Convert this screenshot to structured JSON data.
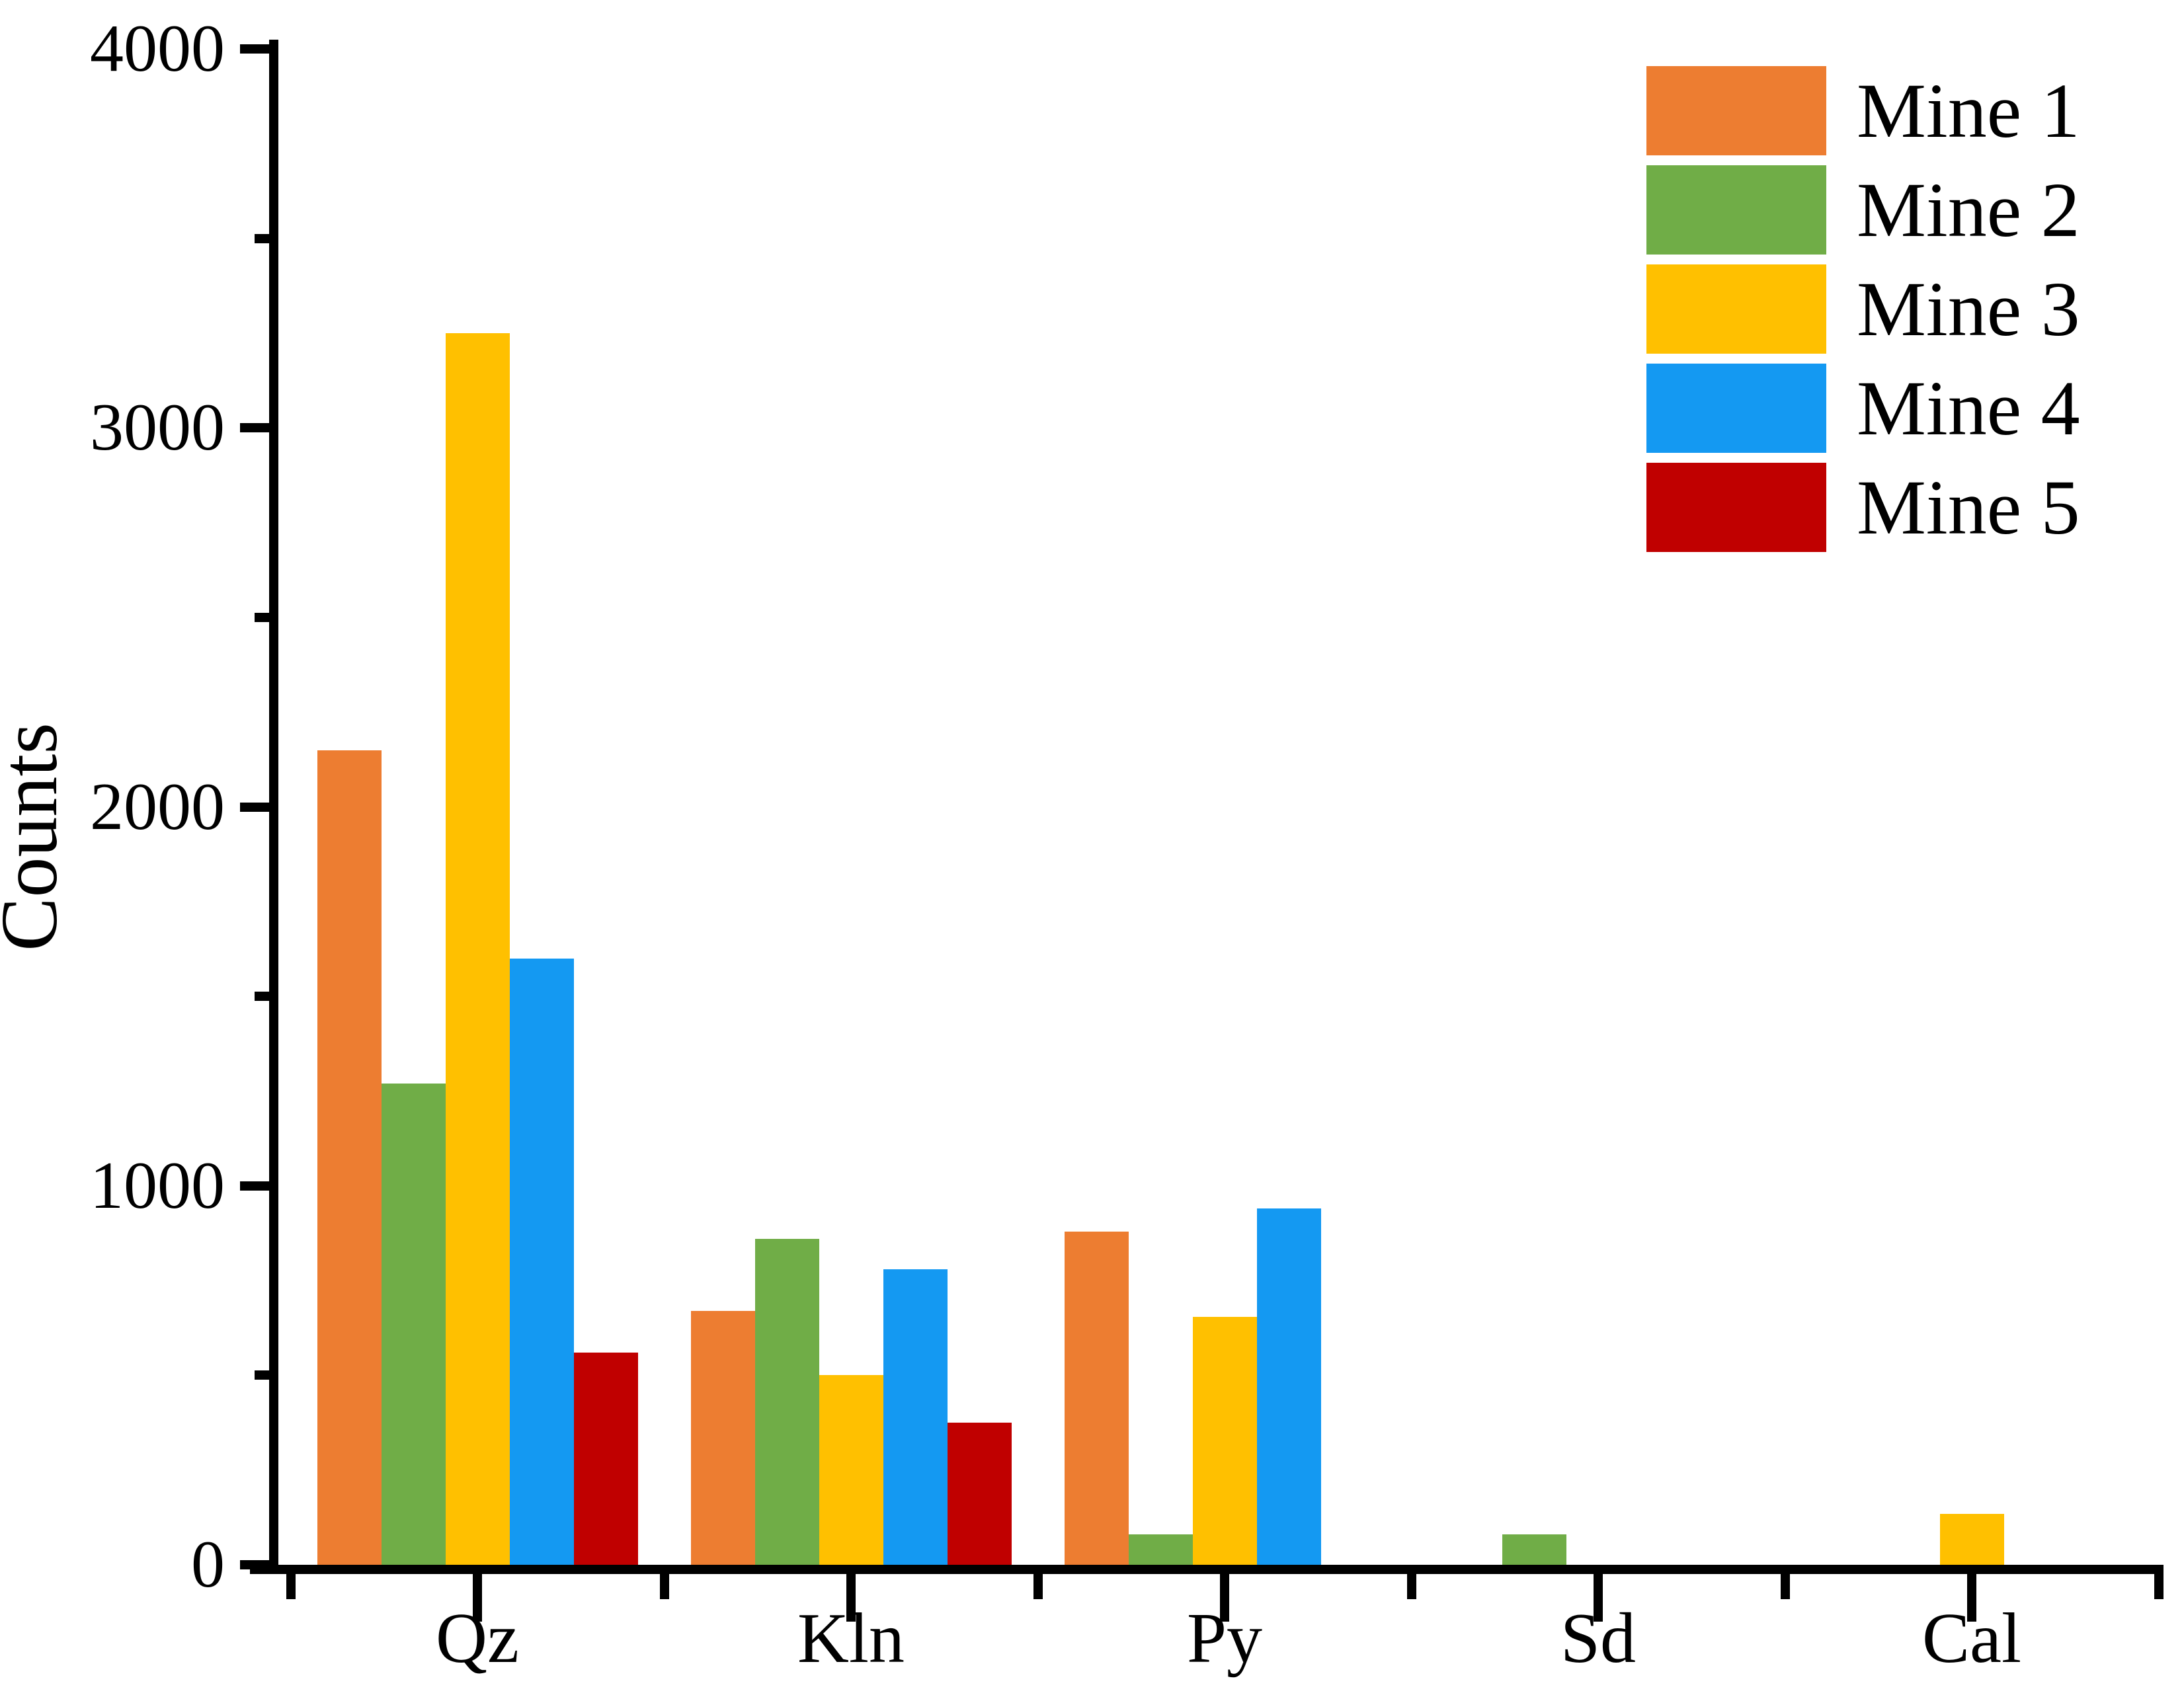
{
  "chart_data": {
    "type": "bar",
    "title": "",
    "xlabel": "",
    "ylabel": "Counts",
    "ylim": [
      0,
      4000
    ],
    "y_major_ticks": [
      0,
      1000,
      2000,
      3000,
      4000
    ],
    "y_minor_ticks": [
      500,
      1500,
      2500,
      3500
    ],
    "grid": "off",
    "legend_position": "top-right",
    "axis_color": "#000000",
    "background_color": "#ffffff",
    "categories": [
      "Qz",
      "Kln",
      "Py",
      "Sd",
      "Cal"
    ],
    "series": [
      {
        "name": "Mine 1",
        "color": "#ED7D31",
        "values": [
          2150,
          670,
          880,
          0,
          0
        ]
      },
      {
        "name": "Mine 2",
        "color": "#70AD47",
        "values": [
          1270,
          860,
          80,
          80,
          0
        ]
      },
      {
        "name": "Mine 3",
        "color": "#FFC000",
        "values": [
          3250,
          500,
          655,
          0,
          135
        ]
      },
      {
        "name": "Mine 4",
        "color": "#1499F2",
        "values": [
          1600,
          780,
          940,
          0,
          0
        ]
      },
      {
        "name": "Mine 5",
        "color": "#C00000",
        "values": [
          560,
          375,
          0,
          0,
          0
        ]
      }
    ]
  }
}
